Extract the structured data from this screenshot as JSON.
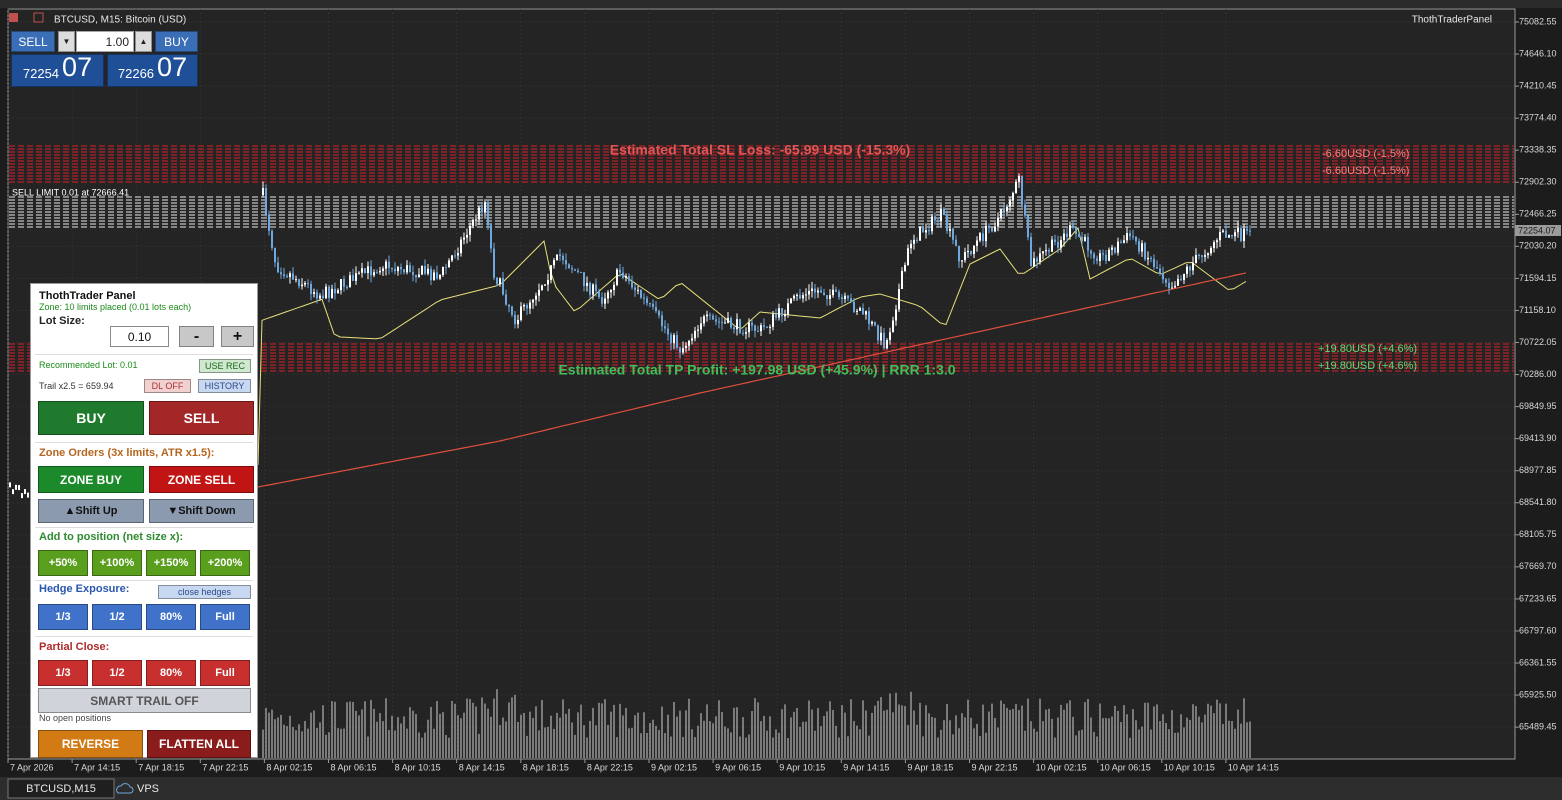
{
  "chart_header": "BTCUSD, M15:  Bitcoin (USD)",
  "panel_name": "ThothTraderPanel",
  "quote": {
    "sell": "SELL",
    "buy": "BUY",
    "lot": "1.00",
    "sell_price": "72254",
    "sell_pips": "07",
    "buy_price": "72266",
    "buy_pips": "07"
  },
  "price_axis": [
    "75082.55",
    "74646.10",
    "74210.45",
    "73774.40",
    "73338.35",
    "72902.30",
    "72466.25",
    "72030.20",
    "71594.15",
    "71158.10",
    "70722.05",
    "70286.00",
    "69849.95",
    "69413.90",
    "68977.85",
    "68541.80",
    "68105.75",
    "67669.70",
    "67233.65",
    "66797.60",
    "66361.55",
    "65925.50",
    "65489.45"
  ],
  "current_price": "72254.07",
  "time_axis": [
    "7 Apr 2026",
    "7 Apr 14:15",
    "7 Apr 18:15",
    "7 Apr 22:15",
    "8 Apr 02:15",
    "8 Apr 06:15",
    "8 Apr 10:15",
    "8 Apr 14:15",
    "8 Apr 18:15",
    "8 Apr 22:15",
    "9 Apr 02:15",
    "9 Apr 06:15",
    "9 Apr 10:15",
    "9 Apr 14:15",
    "9 Apr 18:15",
    "9 Apr 22:15",
    "10 Apr 02:15",
    "10 Apr 06:15",
    "10 Apr 10:15",
    "10 Apr 14:15"
  ],
  "annotations": {
    "sl_total": "Estimated Total SL Loss: -65.99 USD (-15.3%)",
    "tp_total": "Estimated Total TP Profit: +197.98 USD (+45.9%) | RRR 1:3.0",
    "sell_limit": "SELL LIMIT 0.01 at 72666.41",
    "sl_each": "-6.60USD (-1.5%)",
    "tp_each": "+19.80USD (+4.6%)"
  },
  "panel": {
    "title": "ThothTrader Panel",
    "status": "Zone: 10 limits placed (0.01 lots each)",
    "lot_label": "Lot Size:",
    "lot_value": "0.10",
    "minus": "-",
    "plus": "+",
    "recommended": "Recommended Lot: 0.01",
    "use_rec": "USE REC",
    "trail": "Trail x2.5 = 659.94",
    "dl_off": "DL OFF",
    "history": "HISTORY",
    "buy": "BUY",
    "sell": "SELL",
    "zone_title": "Zone Orders (3x limits, ATR x1.5):",
    "zone_buy": "ZONE BUY",
    "zone_sell": "ZONE SELL",
    "shift_up": "▲Shift Up",
    "shift_down": "▼Shift Down",
    "add_title": "Add to position (net size x):",
    "add_buttons": [
      "+50%",
      "+100%",
      "+150%",
      "+200%"
    ],
    "hedge_title": "Hedge Exposure:",
    "close_hedges": "close hedges",
    "hedge_buttons": [
      "1/3",
      "1/2",
      "80%",
      "Full"
    ],
    "partial_title": "Partial Close:",
    "partial_buttons": [
      "1/3",
      "1/2",
      "80%",
      "Full"
    ],
    "smart_trail": "SMART TRAIL OFF",
    "positions": "No open positions",
    "reverse": "REVERSE",
    "flatten": "FLATTEN ALL"
  },
  "tabs": [
    "BTCUSD,M15",
    "VPS"
  ]
}
